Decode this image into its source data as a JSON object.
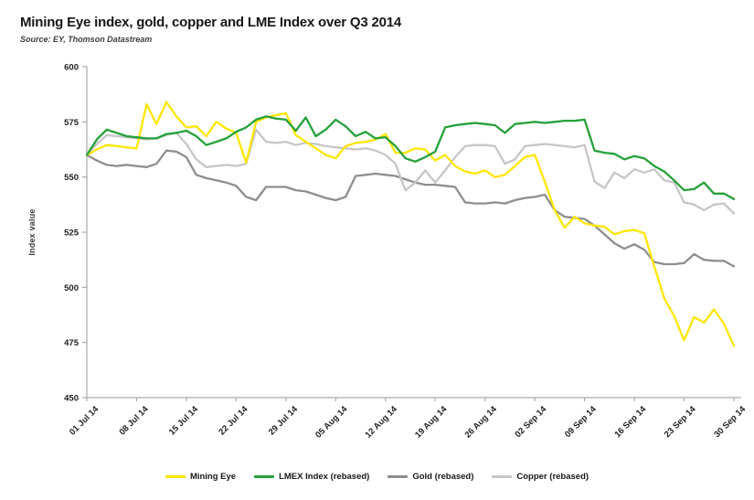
{
  "header": {
    "title": "Mining Eye index, gold, copper and LME Index over Q3 2014",
    "source": "Source: EY, Thomson Datastream"
  },
  "chart_data": {
    "type": "line",
    "title": "Mining Eye index, gold, copper and LME Index over Q3 2014",
    "xlabel": "",
    "ylabel": "Index value",
    "ylim": [
      450,
      600
    ],
    "y_ticks": [
      450,
      475,
      500,
      525,
      550,
      575,
      600
    ],
    "x_tick_labels": [
      "01 Jul 14",
      "08 Jul 14",
      "15 Jul 14",
      "22 Jul 14",
      "29 Jul 14",
      "05 Aug 14",
      "12 Aug 14",
      "19 Aug 14",
      "26 Aug 14",
      "02 Sep 14",
      "09 Sep 14",
      "16 Sep 14",
      "23 Sep 14",
      "30 Sep 14"
    ],
    "x_tick_indices": [
      0,
      5,
      10,
      15,
      20,
      25,
      30,
      35,
      40,
      45,
      50,
      55,
      60,
      65
    ],
    "grid": false,
    "legend_position": "bottom",
    "draw_order": [
      2,
      3,
      0,
      1
    ],
    "series": [
      {
        "name": "Mining Eye",
        "color": "#ffe600",
        "values": [
          560,
          562.5,
          564.5,
          564,
          563.5,
          563,
          583,
          574,
          584,
          577.5,
          572.5,
          573,
          568.5,
          575,
          572,
          570,
          556.5,
          575,
          577,
          578,
          579,
          569,
          566,
          563,
          560,
          558.5,
          564,
          565.5,
          566,
          567,
          569.5,
          561,
          561,
          563,
          562.5,
          557.5,
          560,
          555,
          552.5,
          551.5,
          553,
          550,
          551,
          555,
          559,
          560,
          548,
          535,
          527,
          532,
          529,
          528,
          527.5,
          524,
          525.5,
          526,
          524.5,
          509.5,
          495,
          487,
          476,
          486.5,
          484,
          490,
          483.5,
          473.5
        ]
      },
      {
        "name": "LMEX Index (rebased)",
        "color": "#25a03a",
        "values": [
          560,
          567,
          571.5,
          570,
          568.5,
          568,
          567.5,
          567.5,
          569.5,
          570,
          571,
          568.5,
          564.5,
          566,
          567.5,
          570.5,
          572.5,
          576,
          577.5,
          576.5,
          576,
          571,
          577,
          568.5,
          571.5,
          576,
          573,
          568.5,
          570.5,
          567.5,
          568,
          564,
          558.5,
          557,
          559,
          561.5,
          572.5,
          573.5,
          574,
          574.5,
          574,
          573.5,
          570,
          574,
          574.5,
          575,
          574.5,
          575,
          575.5,
          575.5,
          576,
          562,
          561,
          560.5,
          558,
          559.5,
          558.5,
          555,
          552.5,
          548.5,
          544,
          544.5,
          547.5,
          542.5,
          542.5,
          540
        ]
      },
      {
        "name": "Gold (rebased)",
        "color": "#8e8e8e",
        "values": [
          560,
          557.5,
          555.5,
          555,
          555.5,
          555,
          554.5,
          556,
          562,
          561.5,
          559,
          551,
          549.5,
          548.5,
          547.5,
          546,
          541,
          539.5,
          545.5,
          545.5,
          545.5,
          544,
          543.5,
          542,
          540.5,
          539.5,
          541,
          550.5,
          551,
          551.5,
          551,
          550.5,
          549,
          547.5,
          546.5,
          546.5,
          546,
          545.5,
          538.5,
          538,
          538,
          538.5,
          538,
          539.5,
          540.5,
          541,
          542,
          535,
          532,
          531.5,
          531,
          528,
          524,
          520,
          517.5,
          519.5,
          517,
          511.5,
          510.5,
          510.5,
          511,
          515,
          512.5,
          512,
          512,
          509.5
        ]
      },
      {
        "name": "Copper (rebased)",
        "color": "#c6c6c6",
        "values": [
          560,
          565,
          569,
          568.5,
          568,
          567.5,
          567,
          567.5,
          569,
          570,
          565,
          558,
          554.5,
          555,
          555.5,
          555,
          556,
          571.5,
          566,
          565.5,
          566,
          564.5,
          565.5,
          565,
          564,
          563.5,
          563,
          562.5,
          563,
          562,
          560,
          556,
          544,
          547.5,
          553,
          547.5,
          553,
          559,
          564,
          564.5,
          564.5,
          564,
          556,
          558,
          564,
          564.5,
          565,
          564.5,
          564,
          563.5,
          564.5,
          548,
          545,
          552,
          549.5,
          553.5,
          552,
          553.5,
          548.5,
          547.5,
          538.5,
          537.5,
          535,
          537.5,
          538,
          533.5
        ]
      }
    ]
  }
}
